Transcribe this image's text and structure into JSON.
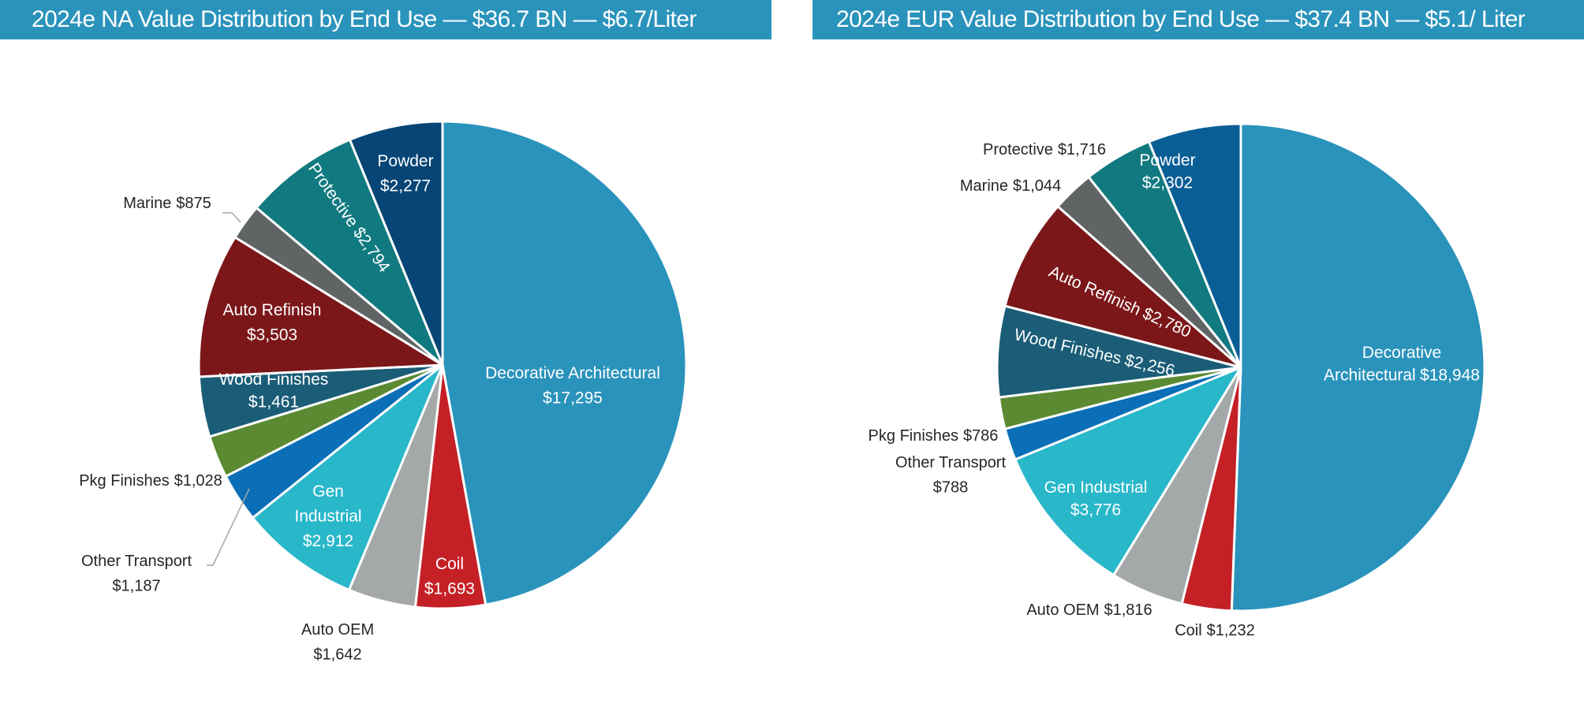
{
  "chart_data": [
    {
      "type": "pie",
      "title": "2024e NA Value Distribution by End Use — $36.7 BN — $6.7/Liter",
      "units": "USD millions",
      "start": "12 o'clock",
      "direction": "clockwise",
      "slices": [
        {
          "name": "Decorative Architectural",
          "value": 17295,
          "label": "Decorative Architectural",
          "value_label": "$17,295",
          "color": "#2a93bb",
          "label_pos": "inside"
        },
        {
          "name": "Coil",
          "value": 1693,
          "label": "Coil",
          "value_label": "$1,693",
          "color": "#c42026",
          "label_pos": "inside"
        },
        {
          "name": "Auto OEM",
          "value": 1642,
          "label": "Auto OEM",
          "value_label": "$1,642",
          "color": "#a4a8a9",
          "label_pos": "outside"
        },
        {
          "name": "Gen Industrial",
          "value": 2912,
          "label": "Gen Industrial",
          "value_label": "$2,912",
          "color": "#29b7ca",
          "label_pos": "inside"
        },
        {
          "name": "Other Transport",
          "value": 1187,
          "label": "Other Transport",
          "value_label": "$1,187",
          "color": "#0a6fb7",
          "label_pos": "outside-leader"
        },
        {
          "name": "Pkg Finishes",
          "value": 1028,
          "label": "Pkg Finishes",
          "value_label": "$1,028",
          "color": "#5b8a32",
          "label_pos": "outside"
        },
        {
          "name": "Wood Finishes",
          "value": 1461,
          "label": "Wood Finishes",
          "value_label": "$1,461",
          "color": "#1b5d77",
          "label_pos": "inside"
        },
        {
          "name": "Auto Refinish",
          "value": 3503,
          "label": "Auto Refinish",
          "value_label": "$3,503",
          "color": "#7b1719",
          "label_pos": "inside"
        },
        {
          "name": "Marine",
          "value": 875,
          "label": "Marine",
          "value_label": "$875",
          "color": "#606464",
          "label_pos": "outside-leader"
        },
        {
          "name": "Protective",
          "value": 2794,
          "label": "Protective",
          "value_label": "$2,794",
          "color": "#117a80",
          "label_pos": "inside-rotated"
        },
        {
          "name": "Powder",
          "value": 2277,
          "label": "Powder",
          "value_label": "$2,277",
          "color": "#064575",
          "label_pos": "inside"
        }
      ]
    },
    {
      "type": "pie",
      "title": "2024e EUR Value Distribution by End Use — $37.4 BN — $5.1/ Liter",
      "units": "USD millions",
      "start": "12 o'clock",
      "direction": "clockwise",
      "slices": [
        {
          "name": "Decorative Architectural",
          "value": 18948,
          "label": "Decorative Architectural",
          "value_label": "$18,948",
          "color": "#2a93bb",
          "label_pos": "inside"
        },
        {
          "name": "Coil",
          "value": 1232,
          "label": "Coil",
          "value_label": "$1,232",
          "color": "#c42026",
          "label_pos": "outside"
        },
        {
          "name": "Auto OEM",
          "value": 1816,
          "label": "Auto OEM",
          "value_label": "$1,816",
          "color": "#a4a8a9",
          "label_pos": "outside"
        },
        {
          "name": "Gen Industrial",
          "value": 3776,
          "label": "Gen Industrial",
          "value_label": "$3,776",
          "color": "#29b7ca",
          "label_pos": "inside"
        },
        {
          "name": "Other Transport",
          "value": 788,
          "label": "Other Transport",
          "value_label": "$788",
          "color": "#0a6fb7",
          "label_pos": "outside"
        },
        {
          "name": "Pkg Finishes",
          "value": 786,
          "label": "Pkg Finishes",
          "value_label": "$786",
          "color": "#5b8a32",
          "label_pos": "outside"
        },
        {
          "name": "Wood Finishes",
          "value": 2256,
          "label": "Wood Finishes",
          "value_label": "$2,256",
          "color": "#1b5d77",
          "label_pos": "inside-rotated"
        },
        {
          "name": "Auto Refinish",
          "value": 2780,
          "label": "Auto Refinish",
          "value_label": "$2,780",
          "color": "#7b1719",
          "label_pos": "inside-rotated"
        },
        {
          "name": "Marine",
          "value": 1044,
          "label": "Marine",
          "value_label": "$1,044",
          "color": "#606464",
          "label_pos": "outside"
        },
        {
          "name": "Protective",
          "value": 1716,
          "label": "Protective",
          "value_label": "$1,716",
          "color": "#117a80",
          "label_pos": "outside"
        },
        {
          "name": "Powder",
          "value": 2302,
          "label": "Powder",
          "value_label": "$2,302",
          "color": "#0a5e96",
          "label_pos": "inside"
        }
      ]
    }
  ],
  "headers": {
    "na_title": "2024e NA Value Distribution by End Use — $36.7 BN — $6.7/Liter",
    "eur_title": "2024e EUR Value Distribution by End Use — $37.4 BN — $5.1/ Liter"
  }
}
